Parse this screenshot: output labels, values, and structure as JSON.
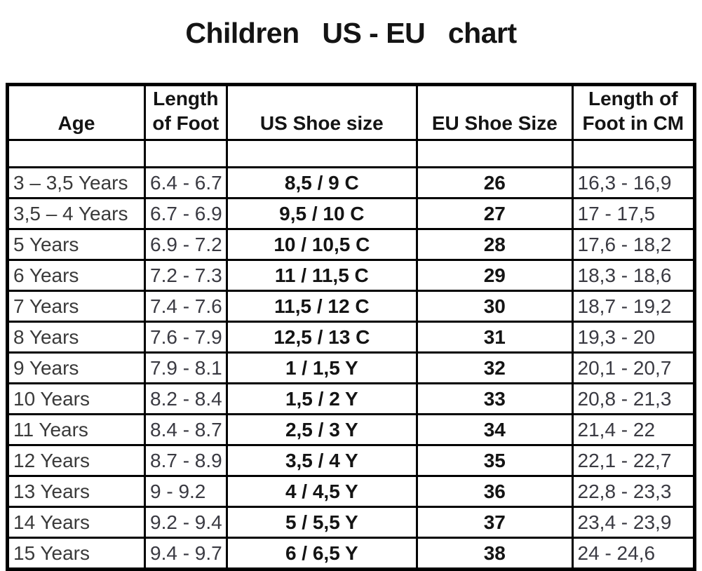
{
  "title": "Children   US - EU   chart",
  "chart_data": {
    "type": "table",
    "title": "Children US - EU chart",
    "columns": [
      "Age",
      "Length of Foot",
      "US Shoe size",
      "EU Shoe Size",
      "Length of Foot in CM"
    ],
    "rows": [
      [
        "3 – 3,5 Years",
        "6.4 - 6.7",
        "8,5 / 9 C",
        "26",
        "16,3 - 16,9"
      ],
      [
        "3,5 – 4 Years",
        "6.7 - 6.9",
        "9,5 / 10 C",
        "27",
        "17 - 17,5"
      ],
      [
        "5 Years",
        "6.9 - 7.2",
        "10 / 10,5 C",
        "28",
        "17,6 - 18,2"
      ],
      [
        "6 Years",
        "7.2 - 7.3",
        "11 / 11,5 C",
        "29",
        "18,3 - 18,6"
      ],
      [
        "7 Years",
        "7.4 - 7.6",
        "11,5 / 12 C",
        "30",
        "18,7 - 19,2"
      ],
      [
        "8 Years",
        "7.6 - 7.9",
        "12,5 / 13 C",
        "31",
        "19,3 - 20"
      ],
      [
        "9 Years",
        "7.9 - 8.1",
        "1 / 1,5 Y",
        "32",
        "20,1 - 20,7"
      ],
      [
        "10 Years",
        "8.2 - 8.4",
        "1,5 / 2 Y",
        "33",
        "20,8 - 21,3"
      ],
      [
        "11 Years",
        "8.4 - 8.7",
        "2,5 / 3 Y",
        "34",
        "21,4 - 22"
      ],
      [
        "12 Years",
        "8.7 - 8.9",
        "3,5 / 4 Y",
        "35",
        "22,1 - 22,7"
      ],
      [
        "13 Years",
        "9 - 9.2",
        "4 / 4,5 Y",
        "36",
        "22,8 - 23,3"
      ],
      [
        "14 Years",
        "9.2 - 9.4",
        "5 / 5,5 Y",
        "37",
        "23,4 - 23,9"
      ],
      [
        "15 Years",
        "9.4 - 9.7",
        "6 / 6,5 Y",
        "38",
        "24 - 24,6"
      ]
    ],
    "layout": {
      "has_empty_spacer_row": true,
      "bold_columns": [
        "US Shoe size",
        "EU Shoe Size"
      ],
      "grid": "on"
    },
    "colors": {
      "background": "#ffffff",
      "border": "#000000",
      "text": "#3a3a3a",
      "bold_text": "#141414"
    }
  }
}
